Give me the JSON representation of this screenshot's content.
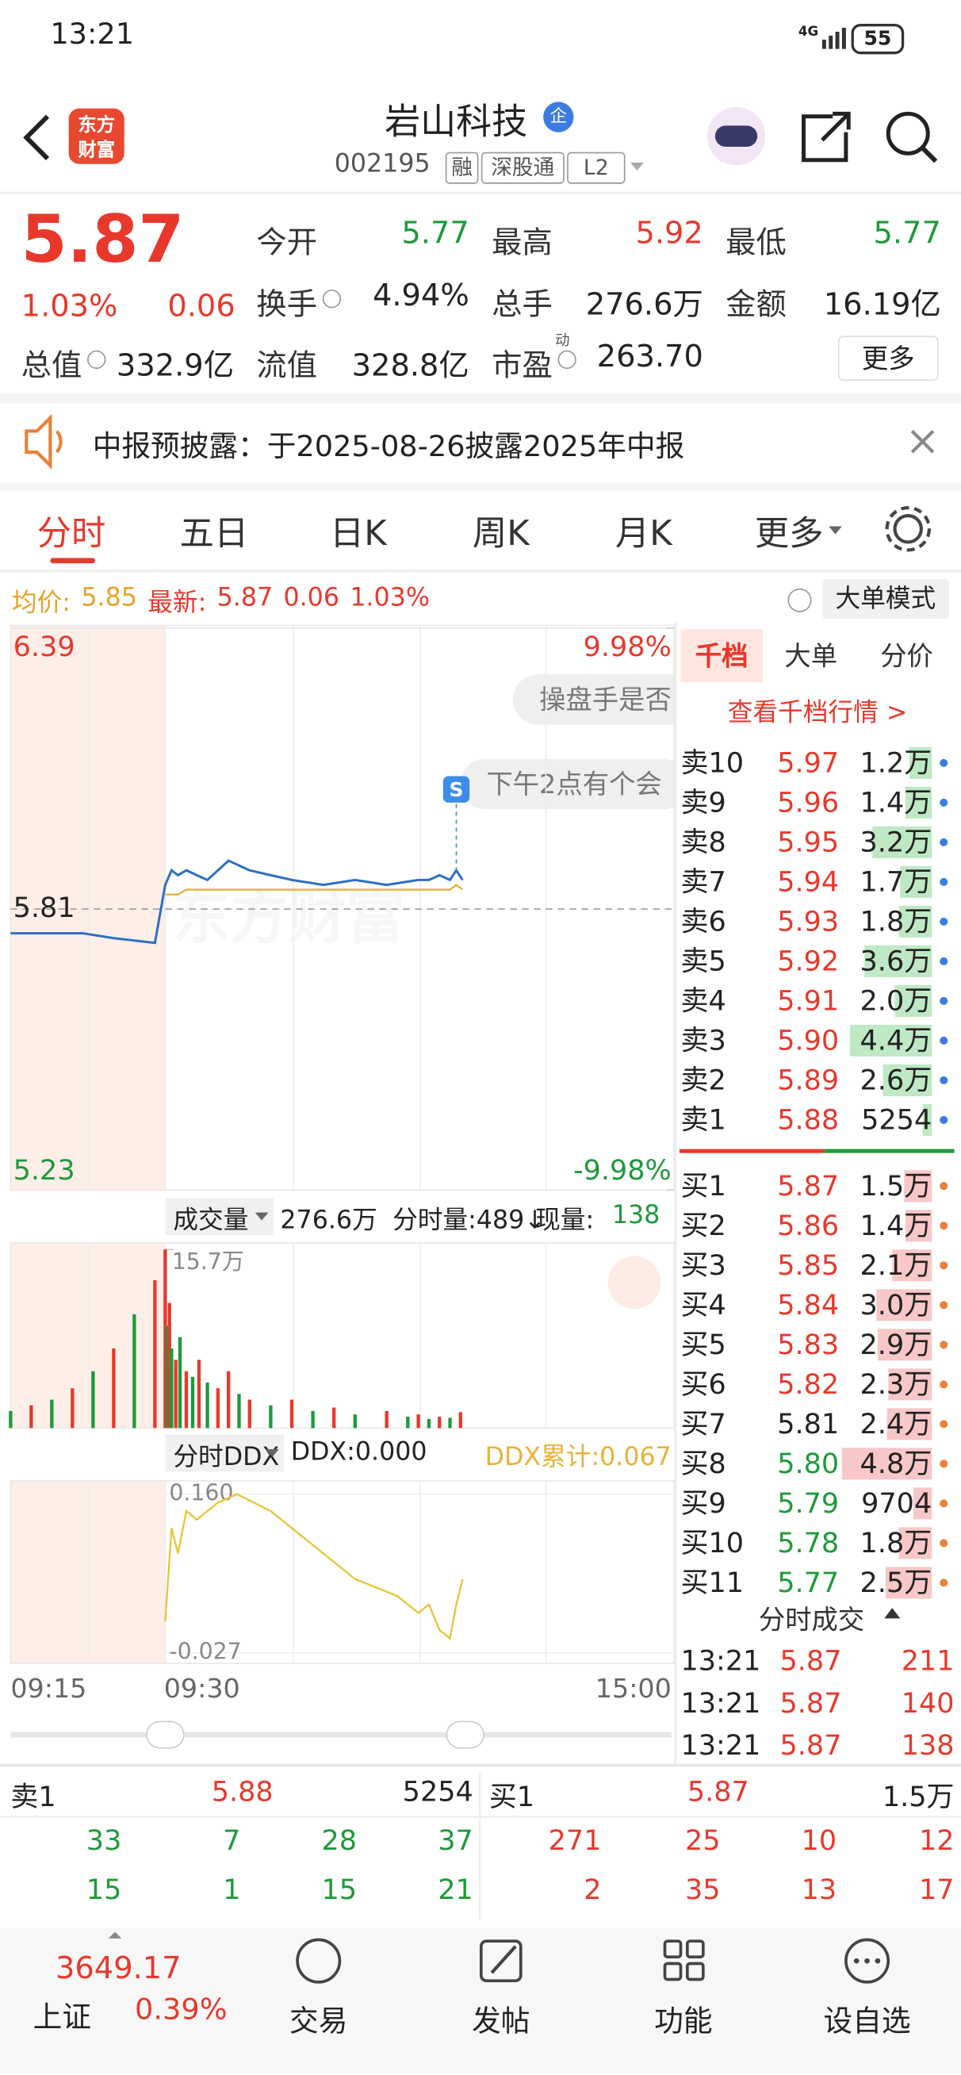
{
  "status_bar": {
    "time": "13:21",
    "network": "4G",
    "battery": "55"
  },
  "header": {
    "logo": [
      "东方",
      "财富"
    ],
    "name": "岩山科技",
    "badge": "企",
    "code": "002195",
    "tags": [
      "融",
      "深股通",
      "L2"
    ]
  },
  "quote": {
    "price": "5.87",
    "change_pct": "1.03%",
    "change": "0.06",
    "fields": [
      {
        "label": "今开",
        "value": "5.77",
        "color": "#1d9a3a"
      },
      {
        "label": "最高",
        "value": "5.92",
        "color": "#e8382c"
      },
      {
        "label": "最低",
        "value": "5.77",
        "color": "#1d9a3a"
      },
      {
        "label": "换手",
        "value": "4.94%"
      },
      {
        "label": "总手",
        "value": "276.6万"
      },
      {
        "label": "金额",
        "value": "16.19亿"
      },
      {
        "label": "总值",
        "value": "332.9亿"
      },
      {
        "label": "流值",
        "value": "328.8亿"
      },
      {
        "label": "市盈",
        "sup": "动",
        "value": "263.70"
      }
    ],
    "more": "更多"
  },
  "notice": "中报预披露：于2025-08-26披露2025年中报",
  "tabs": [
    "分时",
    "五日",
    "日K",
    "周K",
    "月K",
    "更多"
  ],
  "info": {
    "avg_label": "均价:",
    "avg": "5.85",
    "latest_label": "最新:",
    "latest": "5.87",
    "change": "0.06",
    "change_pct": "1.03%",
    "mode": "大单模式"
  },
  "chat": [
    "操盘手是否",
    "下午2点有个会"
  ],
  "watermark": "东方财富",
  "marker": "S",
  "chart_data": [
    {
      "type": "line",
      "x": [
        "09:15",
        "09:19",
        "09:22",
        "09:25",
        "09:29",
        "09:30",
        "09:33",
        "09:36",
        "09:40",
        "09:45",
        "09:50",
        "10:00",
        "10:10",
        "10:20",
        "10:30",
        "10:45",
        "11:00",
        "11:15",
        "11:30",
        "13:00",
        "13:05",
        "13:10",
        "13:15",
        "13:18",
        "13:21"
      ],
      "series": [
        {
          "color": "#2f6fc4",
          "values": [
            5.76,
            5.76,
            5.76,
            5.75,
            5.74,
            5.86,
            5.89,
            5.88,
            5.89,
            5.88,
            5.87,
            5.91,
            5.89,
            5.88,
            5.87,
            5.86,
            5.87,
            5.86,
            5.87,
            5.87,
            5.87,
            5.88,
            5.87,
            5.89,
            5.87
          ]
        },
        {
          "color": "#e8b23a",
          "values": [
            null,
            null,
            null,
            null,
            null,
            5.84,
            5.84,
            5.84,
            5.85,
            5.85,
            5.85,
            5.85,
            5.85,
            5.85,
            5.85,
            5.85,
            5.85,
            5.85,
            5.85,
            5.85,
            5.85,
            5.85,
            5.85,
            5.86,
            5.85
          ]
        }
      ],
      "ylim": [
        5.23,
        6.39
      ],
      "yticks": [
        5.23,
        5.81,
        6.39
      ],
      "y2lim": [
        -9.98,
        9.98
      ],
      "y2ticks": [
        {
          "value": -9.98,
          "label": "-9.98%"
        },
        {
          "value": 9.98,
          "label": "9.98%"
        }
      ],
      "xticks": [
        "09:15",
        "09:30",
        "15:00"
      ]
    },
    {
      "type": "bar",
      "title": "成交量",
      "total": "276.6万",
      "period": "分时量:489↓",
      "current_label": "现量:",
      "current": "138",
      "x": [
        "09:15",
        "09:17",
        "09:19",
        "09:21",
        "09:23",
        "09:25",
        "09:27",
        "09:29",
        "09:30",
        "09:31",
        "09:32",
        "09:33",
        "09:35",
        "09:37",
        "09:40",
        "09:43",
        "09:46",
        "09:50",
        "09:55",
        "10:00",
        "10:05",
        "10:10",
        "10:20",
        "10:30",
        "10:40",
        "10:50",
        "11:00",
        "11:15",
        "11:25",
        "13:00",
        "13:05",
        "13:10",
        "13:15",
        "13:20"
      ],
      "values": [
        15000,
        20000,
        25000,
        35000,
        50000,
        70000,
        100000,
        130000,
        157000,
        90000,
        110000,
        70000,
        60000,
        80000,
        50000,
        45000,
        60000,
        40000,
        35000,
        50000,
        30000,
        25000,
        20000,
        25000,
        15000,
        18000,
        12000,
        15000,
        10000,
        12000,
        8000,
        10000,
        9000,
        14000
      ],
      "colors": [
        "#1d9a3a",
        "#e8382c",
        "#1d9a3a",
        "#e8382c",
        "#1d9a3a",
        "#e8382c",
        "#1d9a3a",
        "#e8382c",
        "#e8382c",
        "#1d9a3a",
        "#e8382c",
        "#1d9a3a",
        "#e8382c",
        "#1d9a3a",
        "#e8382c",
        "#1d9a3a",
        "#e8382c",
        "#1d9a3a",
        "#e8382c",
        "#e8382c",
        "#1d9a3a",
        "#e8382c",
        "#1d9a3a",
        "#e8382c",
        "#1d9a3a",
        "#e8382c",
        "#1d9a3a",
        "#e8382c",
        "#1d9a3a",
        "#e8382c",
        "#1d9a3a",
        "#e8382c",
        "#1d9a3a",
        "#e8382c"
      ],
      "ylim": [
        0,
        157000
      ],
      "yticks": [
        {
          "value": 157000,
          "label": "15.7万"
        }
      ]
    },
    {
      "type": "line",
      "title": "分时DDX",
      "value_text": "DDX:0.000",
      "cumulative": "DDX累计:0.067",
      "color": "#e8c53a",
      "x": [
        "09:30",
        "09:33",
        "09:36",
        "09:40",
        "09:45",
        "09:55",
        "10:04",
        "10:20",
        "10:40",
        "11:00",
        "11:20",
        "13:00",
        "13:05",
        "13:10",
        "13:15",
        "13:18",
        "13:21"
      ],
      "values": [
        0.01,
        0.12,
        0.09,
        0.14,
        0.13,
        0.15,
        0.16,
        0.14,
        0.1,
        0.06,
        0.04,
        0.02,
        0.03,
        0.0,
        -0.01,
        0.03,
        0.06
      ],
      "ylim": [
        -0.027,
        0.16
      ],
      "yticks": [
        -0.027,
        {
          "value": 0.16,
          "label": "0.160"
        }
      ]
    }
  ],
  "order_book": {
    "tabs": [
      "千档",
      "大单",
      "分价"
    ],
    "link": "查看千档行情 >",
    "asks": [
      {
        "label": "卖10",
        "price": "5.97",
        "volume": {
          "value": 12000,
          "label": "1.2万"
        }
      },
      {
        "label": "卖9",
        "price": "5.96",
        "volume": {
          "value": 14000,
          "label": "1.4万"
        }
      },
      {
        "label": "卖8",
        "price": "5.95",
        "volume": {
          "value": 32000,
          "label": "3.2万"
        }
      },
      {
        "label": "卖7",
        "price": "5.94",
        "volume": {
          "value": 17000,
          "label": "1.7万"
        }
      },
      {
        "label": "卖6",
        "price": "5.93",
        "volume": {
          "value": 18000,
          "label": "1.8万"
        }
      },
      {
        "label": "卖5",
        "price": "5.92",
        "volume": {
          "value": 36000,
          "label": "3.6万"
        }
      },
      {
        "label": "卖4",
        "price": "5.91",
        "volume": {
          "value": 20000,
          "label": "2.0万"
        }
      },
      {
        "label": "卖3",
        "price": "5.90",
        "volume": {
          "value": 44000,
          "label": "4.4万"
        }
      },
      {
        "label": "卖2",
        "price": "5.89",
        "volume": {
          "value": 26000,
          "label": "2.6万"
        }
      },
      {
        "label": "卖1",
        "price": "5.88",
        "volume": 5254
      }
    ],
    "bids": [
      {
        "label": "买1",
        "price": "5.87",
        "volume": {
          "value": 15000,
          "label": "1.5万"
        }
      },
      {
        "label": "买2",
        "price": "5.86",
        "volume": {
          "value": 14000,
          "label": "1.4万"
        }
      },
      {
        "label": "买3",
        "price": "5.85",
        "volume": {
          "value": 21000,
          "label": "2.1万"
        }
      },
      {
        "label": "买4",
        "price": "5.84",
        "volume": {
          "value": 30000,
          "label": "3.0万"
        }
      },
      {
        "label": "买5",
        "price": "5.83",
        "volume": {
          "value": 29000,
          "label": "2.9万"
        }
      },
      {
        "label": "买6",
        "price": "5.82",
        "volume": {
          "value": 23000,
          "label": "2.3万"
        }
      },
      {
        "label": "买7",
        "price": "5.81",
        "volume": {
          "value": 24000,
          "label": "2.4万"
        }
      },
      {
        "label": "买8",
        "price": "5.80",
        "volume": {
          "value": 48000,
          "label": "4.8万"
        }
      },
      {
        "label": "买9",
        "price": "5.79",
        "volume": 9704
      },
      {
        "label": "买10",
        "price": "5.78",
        "volume": {
          "value": 18000,
          "label": "1.8万"
        }
      },
      {
        "label": "买11",
        "price": "5.77",
        "volume": {
          "value": 25000,
          "label": "2.5万"
        }
      }
    ]
  },
  "trades": {
    "title": "分时成交",
    "rows": [
      [
        "13:21",
        "5.87",
        "211"
      ],
      [
        "13:21",
        "5.87",
        "140"
      ],
      [
        "13:21",
        "5.87",
        "138"
      ]
    ]
  },
  "summary": {
    "ask": [
      "卖1",
      "5.88",
      "5254"
    ],
    "bid": [
      "买1",
      "5.87",
      "1.5万"
    ],
    "ask_rows": [
      [
        33,
        7,
        28,
        37
      ],
      [
        15,
        1,
        15,
        21
      ]
    ],
    "bid_rows": [
      [
        271,
        25,
        10,
        12
      ],
      [
        2,
        35,
        13,
        17
      ]
    ]
  },
  "nav": {
    "index_value": "3649.17",
    "index_name": "上证",
    "index_change": "0.39%",
    "index_color": "#e8382c",
    "items": [
      "交易",
      "发帖",
      "功能",
      "设自选"
    ]
  }
}
